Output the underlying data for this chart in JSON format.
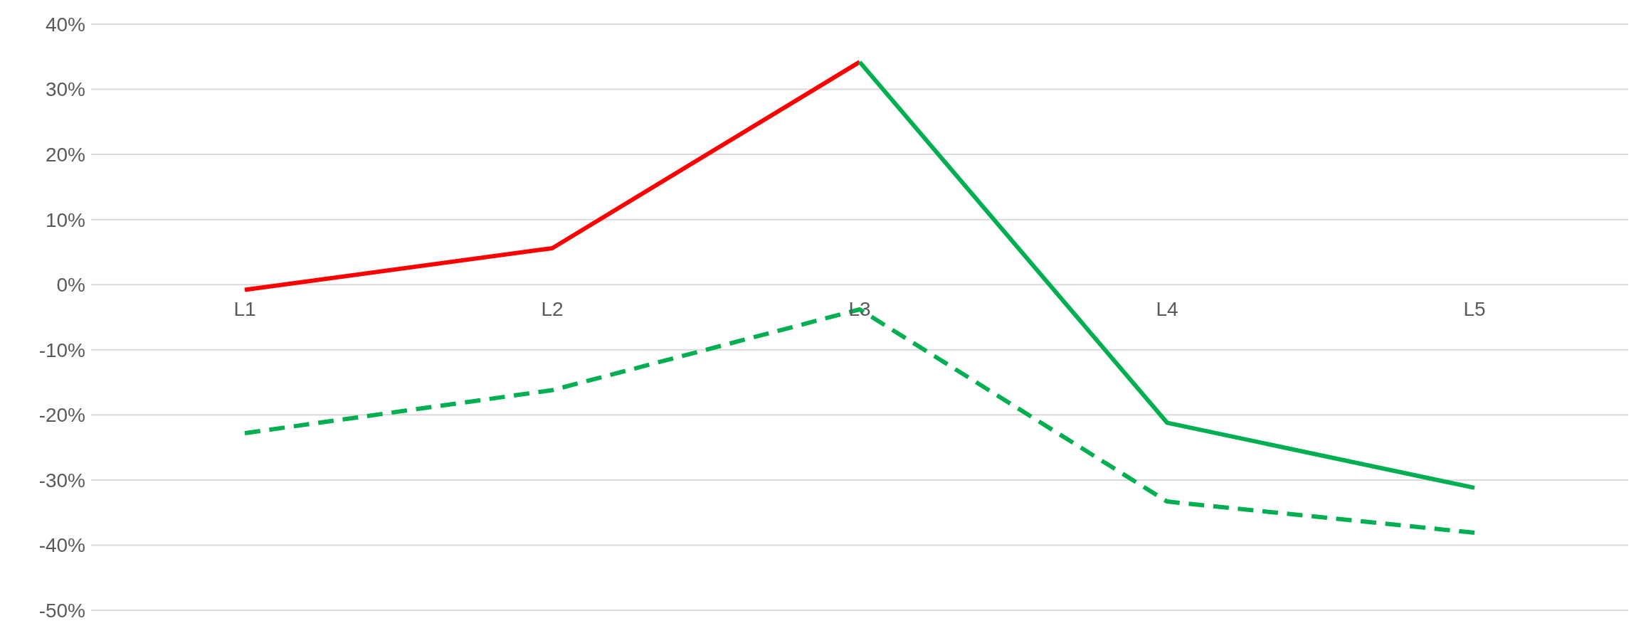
{
  "chart_data": {
    "type": "line",
    "categories": [
      "L1",
      "L2",
      "L3",
      "L4",
      "L5"
    ],
    "series": [
      {
        "color": "#ff0000",
        "values": [
          -0.8,
          5.6,
          34.2,
          null,
          null
        ],
        "line_style": "solid"
      },
      {
        "color": "#00b050",
        "values": [
          null,
          null,
          34.2,
          -21.2,
          -31.2
        ],
        "line_style": "solid"
      },
      {
        "color": "#00b050",
        "values": [
          -22.8,
          -16.2,
          -3.8,
          -33.3,
          -38.1
        ],
        "line_style": "dashed"
      }
    ],
    "ylim": [
      -50,
      40
    ],
    "yticks": [
      {
        "value": -50,
        "label": "-50%"
      },
      {
        "value": -40,
        "label": "-40%"
      },
      {
        "value": -30,
        "label": "-30%"
      },
      {
        "value": -20,
        "label": "-20%"
      },
      {
        "value": -10,
        "label": "-10%"
      },
      {
        "value": 0,
        "label": "0%"
      },
      {
        "value": 10,
        "label": "10%"
      },
      {
        "value": 20,
        "label": "20%"
      },
      {
        "value": 30,
        "label": "30%"
      },
      {
        "value": 40,
        "label": "40%"
      }
    ],
    "grid": "y",
    "marker": "none",
    "legend": false
  }
}
